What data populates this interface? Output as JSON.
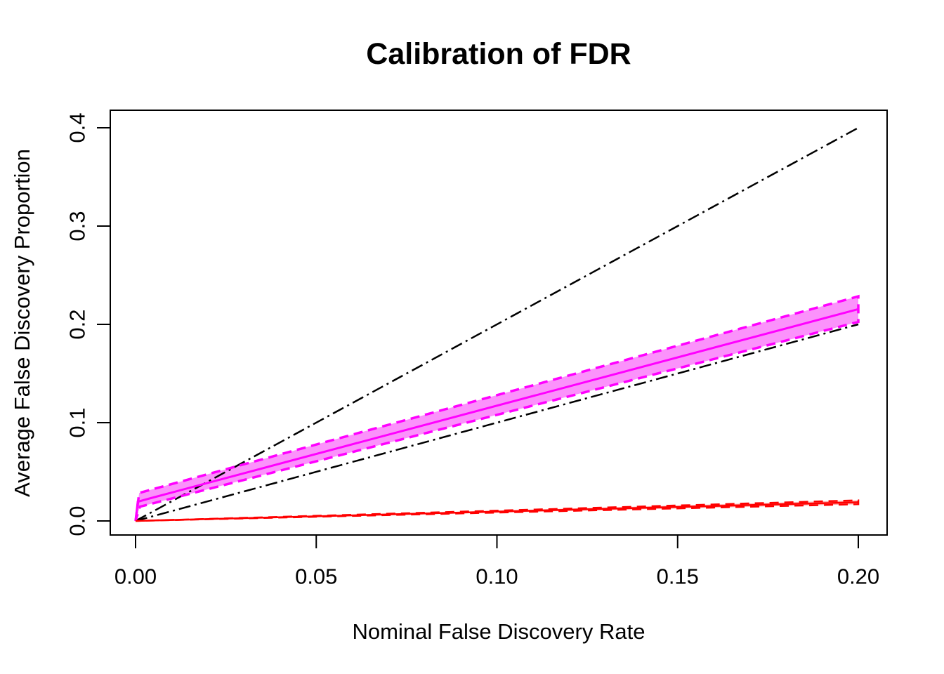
{
  "chart_data": {
    "type": "line",
    "title": "Calibration of FDR",
    "xlabel": "Nominal False Discovery Rate",
    "ylabel": "Average False Discovery Proportion",
    "xlim": [
      0,
      0.2
    ],
    "ylim": [
      0,
      0.4
    ],
    "grid": false,
    "legend": "none",
    "xticks": {
      "values": [
        0.0,
        0.05,
        0.1,
        0.15,
        0.2
      ],
      "labels": [
        "0.00",
        "0.05",
        "0.10",
        "0.15",
        "0.20"
      ]
    },
    "yticks": {
      "values": [
        0.0,
        0.1,
        0.2,
        0.3,
        0.4
      ],
      "labels": [
        "0.0",
        "0.1",
        "0.2",
        "0.3",
        "0.4"
      ]
    },
    "colors": {
      "foreground": "#000000",
      "background": "#ffffff",
      "magenta_line": "#FF00FF",
      "magenta_band_fill": "#FB92FB",
      "red_line": "#FF0000",
      "red_band_fill": "#FFAAAA"
    },
    "bands": [
      {
        "name": "magenta-confidence-band",
        "fill": "#FB92FB",
        "border_color": "#FF00FF",
        "border_style": "dashed",
        "border_width": 3.5,
        "upper": [
          [
            0,
            0
          ],
          [
            0.001,
            0.0285
          ],
          [
            0.2,
            0.2285
          ]
        ],
        "lower": [
          [
            0,
            0
          ],
          [
            0.0012,
            0.0145
          ],
          [
            0.2,
            0.2025
          ]
        ]
      },
      {
        "name": "red-confidence-band",
        "fill": "#FFAAAA",
        "border_color": "#FF0000",
        "border_style": "dashed",
        "border_width": 2.5,
        "upper": [
          [
            0,
            0
          ],
          [
            0.2,
            0.021
          ]
        ],
        "lower": [
          [
            0,
            0
          ],
          [
            0.2,
            0.017
          ]
        ]
      }
    ],
    "series": [
      {
        "name": "two-x-reference-line",
        "color": "#000000",
        "style": "dotdash",
        "width": 2.5,
        "reference": true,
        "points": [
          [
            0,
            0
          ],
          [
            0.2,
            0.4
          ]
        ]
      },
      {
        "name": "identity-reference-line",
        "color": "#000000",
        "style": "dotdash",
        "width": 2.5,
        "reference": true,
        "points": [
          [
            0,
            0
          ],
          [
            0.2,
            0.2
          ]
        ]
      },
      {
        "name": "magenta-mean-fdp-line",
        "color": "#FF00FF",
        "style": "solid",
        "width": 3,
        "reference": false,
        "points": [
          [
            0,
            0
          ],
          [
            0.0006,
            0.0195
          ],
          [
            0.0035,
            0.0225
          ],
          [
            0.2,
            0.2155
          ]
        ]
      },
      {
        "name": "red-mean-fdp-line",
        "color": "#FF0000",
        "style": "solid",
        "width": 2.5,
        "reference": false,
        "points": [
          [
            0,
            0
          ],
          [
            0.2,
            0.019
          ]
        ]
      }
    ]
  }
}
